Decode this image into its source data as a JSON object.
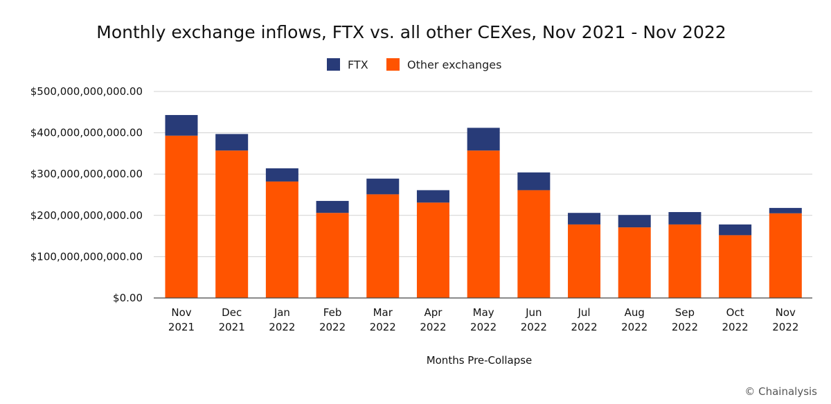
{
  "chart_data": {
    "type": "bar",
    "stacked": true,
    "title": "Monthly exchange inflows, FTX vs. all other CEXes, Nov 2021 - Nov 2022",
    "xlabel": "Months Pre-Collapse",
    "ylabel": "",
    "ylim": [
      0,
      500000000000
    ],
    "grid": true,
    "legend_position": "top-center",
    "categories": [
      [
        "Nov",
        "2021"
      ],
      [
        "Dec",
        "2021"
      ],
      [
        "Jan",
        "2022"
      ],
      [
        "Feb",
        "2022"
      ],
      [
        "Mar",
        "2022"
      ],
      [
        "Apr",
        "2022"
      ],
      [
        "May",
        "2022"
      ],
      [
        "Jun",
        "2022"
      ],
      [
        "Jul",
        "2022"
      ],
      [
        "Aug",
        "2022"
      ],
      [
        "Sep",
        "2022"
      ],
      [
        "Oct",
        "2022"
      ],
      [
        "Nov",
        "2022"
      ]
    ],
    "yticks": [
      {
        "value": 0,
        "label": "$0.00"
      },
      {
        "value": 100000000000,
        "label": "$100,000,000,000.00"
      },
      {
        "value": 200000000000,
        "label": "$200,000,000,000.00"
      },
      {
        "value": 300000000000,
        "label": "$300,000,000,000.00"
      },
      {
        "value": 400000000000,
        "label": "$400,000,000,000.00"
      },
      {
        "value": 500000000000,
        "label": "$500,000,000,000.00"
      }
    ],
    "series": [
      {
        "name": "Other exchanges",
        "color": "#ff5400",
        "values": [
          393000000000,
          357000000000,
          282000000000,
          206000000000,
          251000000000,
          231000000000,
          357000000000,
          261000000000,
          178000000000,
          171000000000,
          178000000000,
          152000000000,
          205000000000
        ]
      },
      {
        "name": "FTX",
        "color": "#283b78",
        "values": [
          50000000000,
          40000000000,
          32000000000,
          29000000000,
          38000000000,
          30000000000,
          55000000000,
          43000000000,
          28000000000,
          30000000000,
          30000000000,
          26000000000,
          13000000000
        ]
      }
    ],
    "legend_order": [
      "FTX",
      "Other exchanges"
    ]
  },
  "watermark": "© Chainalysis"
}
